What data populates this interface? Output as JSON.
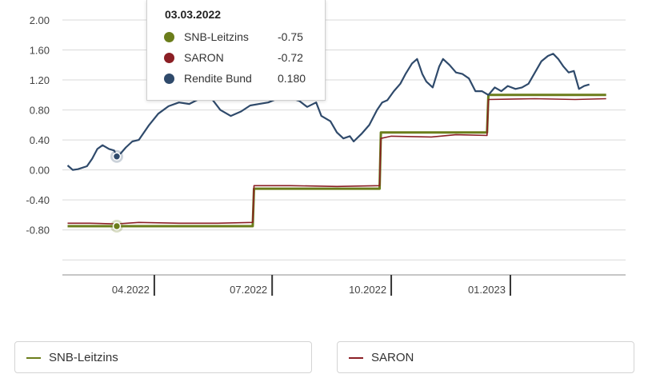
{
  "chart_data": {
    "type": "line",
    "y_ticks": [
      "2.00",
      "1.60",
      "1.20",
      "0.80",
      "0.40",
      "0.00",
      "-0.40",
      "-0.80"
    ],
    "ylim": [
      -1.4,
      2.0
    ],
    "x_ticks": [
      {
        "label": "04.2022",
        "date": "2022-04-01"
      },
      {
        "label": "07.2022",
        "date": "2022-07-01"
      },
      {
        "label": "10.2022",
        "date": "2022-10-01"
      },
      {
        "label": "01.2023",
        "date": "2023-01-01"
      }
    ],
    "xlim": [
      "2022-01-20",
      "2023-03-31"
    ],
    "series": [
      {
        "name": "SNB-Leitzins",
        "color": "#6b7d1b",
        "step": true,
        "points": [
          [
            "2022-01-24",
            -0.75
          ],
          [
            "2022-06-16",
            -0.75
          ],
          [
            "2022-06-17",
            -0.25
          ],
          [
            "2022-09-22",
            -0.25
          ],
          [
            "2022-09-23",
            0.5
          ],
          [
            "2022-12-14",
            0.5
          ],
          [
            "2022-12-15",
            1.0
          ],
          [
            "2023-03-16",
            1.0
          ]
        ]
      },
      {
        "name": "SARON",
        "color": "#8b1f25",
        "points": [
          [
            "2022-01-24",
            -0.71
          ],
          [
            "2022-02-10",
            -0.71
          ],
          [
            "2022-03-03",
            -0.72
          ],
          [
            "2022-03-20",
            -0.7
          ],
          [
            "2022-04-20",
            -0.71
          ],
          [
            "2022-05-20",
            -0.71
          ],
          [
            "2022-06-16",
            -0.7
          ],
          [
            "2022-06-17",
            -0.21
          ],
          [
            "2022-07-15",
            -0.21
          ],
          [
            "2022-08-20",
            -0.22
          ],
          [
            "2022-09-22",
            -0.21
          ],
          [
            "2022-09-23",
            0.42
          ],
          [
            "2022-10-01",
            0.45
          ],
          [
            "2022-11-01",
            0.44
          ],
          [
            "2022-11-20",
            0.47
          ],
          [
            "2022-12-14",
            0.46
          ],
          [
            "2022-12-15",
            0.94
          ],
          [
            "2023-01-20",
            0.95
          ],
          [
            "2023-02-20",
            0.94
          ],
          [
            "2023-03-16",
            0.95
          ]
        ]
      },
      {
        "name": "Rendite Bund",
        "color": "#2f4a6b",
        "points": [
          [
            "2022-01-24",
            0.06
          ],
          [
            "2022-01-28",
            0.0
          ],
          [
            "2022-02-01",
            0.01
          ],
          [
            "2022-02-08",
            0.05
          ],
          [
            "2022-02-12",
            0.15
          ],
          [
            "2022-02-16",
            0.28
          ],
          [
            "2022-02-20",
            0.33
          ],
          [
            "2022-02-25",
            0.28
          ],
          [
            "2022-03-01",
            0.26
          ],
          [
            "2022-03-03",
            0.18
          ],
          [
            "2022-03-06",
            0.22
          ],
          [
            "2022-03-10",
            0.3
          ],
          [
            "2022-03-15",
            0.38
          ],
          [
            "2022-03-20",
            0.4
          ],
          [
            "2022-03-28",
            0.6
          ],
          [
            "2022-04-04",
            0.75
          ],
          [
            "2022-04-12",
            0.85
          ],
          [
            "2022-04-20",
            0.9
          ],
          [
            "2022-04-28",
            0.88
          ],
          [
            "2022-05-06",
            0.95
          ],
          [
            "2022-05-14",
            0.98
          ],
          [
            "2022-05-22",
            0.8
          ],
          [
            "2022-05-30",
            0.72
          ],
          [
            "2022-06-07",
            0.78
          ],
          [
            "2022-06-14",
            0.86
          ],
          [
            "2022-06-21",
            0.88
          ],
          [
            "2022-06-28",
            0.9
          ],
          [
            "2022-07-05",
            0.95
          ],
          [
            "2022-07-10",
            0.98
          ],
          [
            "2022-07-15",
            0.96
          ],
          [
            "2022-07-22",
            0.92
          ],
          [
            "2022-07-28",
            0.84
          ],
          [
            "2022-08-04",
            0.9
          ],
          [
            "2022-08-08",
            0.72
          ],
          [
            "2022-08-15",
            0.65
          ],
          [
            "2022-08-20",
            0.5
          ],
          [
            "2022-08-25",
            0.42
          ],
          [
            "2022-08-30",
            0.45
          ],
          [
            "2022-09-02",
            0.38
          ],
          [
            "2022-09-08",
            0.48
          ],
          [
            "2022-09-14",
            0.6
          ],
          [
            "2022-09-20",
            0.8
          ],
          [
            "2022-09-24",
            0.9
          ],
          [
            "2022-09-28",
            0.93
          ],
          [
            "2022-10-03",
            1.05
          ],
          [
            "2022-10-08",
            1.15
          ],
          [
            "2022-10-12",
            1.28
          ],
          [
            "2022-10-17",
            1.42
          ],
          [
            "2022-10-21",
            1.48
          ],
          [
            "2022-10-25",
            1.28
          ],
          [
            "2022-10-28",
            1.18
          ],
          [
            "2022-11-02",
            1.1
          ],
          [
            "2022-11-07",
            1.38
          ],
          [
            "2022-11-10",
            1.48
          ],
          [
            "2022-11-15",
            1.4
          ],
          [
            "2022-11-20",
            1.3
          ],
          [
            "2022-11-25",
            1.28
          ],
          [
            "2022-11-30",
            1.22
          ],
          [
            "2022-12-05",
            1.05
          ],
          [
            "2022-12-10",
            1.05
          ],
          [
            "2022-12-15",
            1.0
          ],
          [
            "2022-12-20",
            1.1
          ],
          [
            "2022-12-25",
            1.05
          ],
          [
            "2022-12-30",
            1.12
          ],
          [
            "2023-01-05",
            1.08
          ],
          [
            "2023-01-10",
            1.1
          ],
          [
            "2023-01-15",
            1.15
          ],
          [
            "2023-01-20",
            1.3
          ],
          [
            "2023-01-25",
            1.45
          ],
          [
            "2023-01-30",
            1.52
          ],
          [
            "2023-02-03",
            1.55
          ],
          [
            "2023-02-07",
            1.48
          ],
          [
            "2023-02-11",
            1.38
          ],
          [
            "2023-02-15",
            1.3
          ],
          [
            "2023-02-19",
            1.32
          ],
          [
            "2023-02-23",
            1.08
          ],
          [
            "2023-02-27",
            1.12
          ],
          [
            "2023-03-03",
            1.14
          ]
        ]
      }
    ],
    "hover": {
      "date": "03.03.2022",
      "date_iso": "2022-03-03",
      "rows": [
        {
          "name": "SNB-Leitzins",
          "value": "-0.75",
          "y": -0.75,
          "color": "#6b7d1b"
        },
        {
          "name": "SARON",
          "value": "-0.72",
          "y": -0.72,
          "color": "#8b1f25"
        },
        {
          "name": "Rendite Bund",
          "value": "0.180",
          "y": 0.18,
          "color": "#2f4a6b"
        }
      ]
    },
    "legend": {
      "placement": "bottom",
      "items": [
        {
          "name": "SNB-Leitzins",
          "color": "#6b7d1b"
        },
        {
          "name": "SARON",
          "color": "#8b1f25"
        }
      ]
    },
    "grid": true
  }
}
